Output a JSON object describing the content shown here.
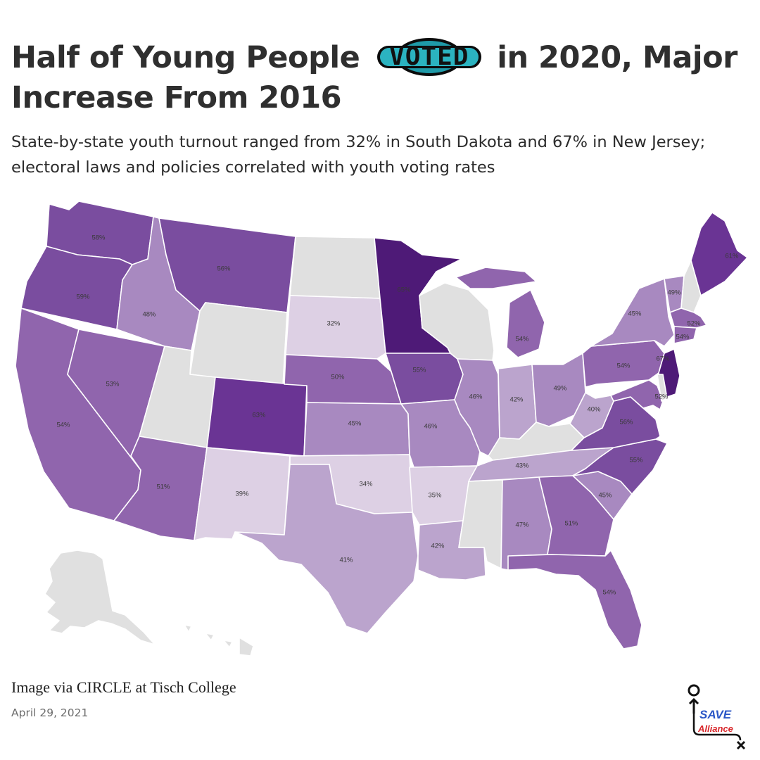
{
  "header": {
    "title_before": "Half of Young People",
    "badge": "VOTED",
    "title_after": "in 2020, Major Increase From 2016",
    "subtitle": "State-by-state youth turnout ranged from 32% in South Dakota and 67% in New Jersey; electoral laws and policies correlated with youth voting rates"
  },
  "map": {
    "no_data_color": "#e0e0e0",
    "colors": {
      "30s": "#ddd0e4",
      "40_44": "#bba4cd",
      "45_49": "#a889c0",
      "50_54": "#9065ad",
      "55_59": "#7a4d9f",
      "60_64": "#6a3494",
      "65_plus": "#4e1a77"
    },
    "states": [
      {
        "id": "WA",
        "label": "58%",
        "value": 58
      },
      {
        "id": "OR",
        "label": "59%",
        "value": 59
      },
      {
        "id": "CA",
        "label": "54%",
        "value": 54
      },
      {
        "id": "NV",
        "label": "53%",
        "value": 53
      },
      {
        "id": "ID",
        "label": "48%",
        "value": 48
      },
      {
        "id": "MT",
        "label": "56%",
        "value": 56
      },
      {
        "id": "WY",
        "label": "",
        "value": null
      },
      {
        "id": "UT",
        "label": "",
        "value": null
      },
      {
        "id": "AZ",
        "label": "51%",
        "value": 51
      },
      {
        "id": "CO",
        "label": "63%",
        "value": 63
      },
      {
        "id": "NM",
        "label": "39%",
        "value": 39
      },
      {
        "id": "ND",
        "label": "",
        "value": null
      },
      {
        "id": "SD",
        "label": "32%",
        "value": 32
      },
      {
        "id": "NE",
        "label": "50%",
        "value": 50
      },
      {
        "id": "KS",
        "label": "45%",
        "value": 45
      },
      {
        "id": "OK",
        "label": "34%",
        "value": 34
      },
      {
        "id": "TX",
        "label": "41%",
        "value": 41
      },
      {
        "id": "MN",
        "label": "65%",
        "value": 65
      },
      {
        "id": "IA",
        "label": "55%",
        "value": 55
      },
      {
        "id": "MO",
        "label": "46%",
        "value": 46
      },
      {
        "id": "AR",
        "label": "35%",
        "value": 35
      },
      {
        "id": "LA",
        "label": "42%",
        "value": 42
      },
      {
        "id": "WI",
        "label": "",
        "value": null
      },
      {
        "id": "IL",
        "label": "46%",
        "value": 46
      },
      {
        "id": "MI",
        "label": "54%",
        "value": 54
      },
      {
        "id": "IN",
        "label": "42%",
        "value": 42
      },
      {
        "id": "OH",
        "label": "49%",
        "value": 49
      },
      {
        "id": "KY",
        "label": "",
        "value": null
      },
      {
        "id": "TN",
        "label": "43%",
        "value": 43
      },
      {
        "id": "MS",
        "label": "",
        "value": null
      },
      {
        "id": "AL",
        "label": "47%",
        "value": 47
      },
      {
        "id": "GA",
        "label": "51%",
        "value": 51
      },
      {
        "id": "FL",
        "label": "54%",
        "value": 54
      },
      {
        "id": "SC",
        "label": "45%",
        "value": 45
      },
      {
        "id": "NC",
        "label": "55%",
        "value": 55
      },
      {
        "id": "VA",
        "label": "56%",
        "value": 56
      },
      {
        "id": "WV",
        "label": "40%",
        "value": 40
      },
      {
        "id": "PA",
        "label": "54%",
        "value": 54
      },
      {
        "id": "NY",
        "label": "45%",
        "value": 45
      },
      {
        "id": "VT",
        "label": "49%",
        "value": 49
      },
      {
        "id": "NH",
        "label": "",
        "value": null
      },
      {
        "id": "ME",
        "label": "61%",
        "value": 61
      },
      {
        "id": "MA",
        "label": "52%",
        "value": 52
      },
      {
        "id": "CT",
        "label": "54%",
        "value": 54
      },
      {
        "id": "NJ",
        "label": "67%",
        "value": 67
      },
      {
        "id": "MD",
        "label": "52%",
        "value": 52
      },
      {
        "id": "DE",
        "label": "",
        "value": null
      },
      {
        "id": "AK",
        "label": "",
        "value": null
      },
      {
        "id": "HI",
        "label": "",
        "value": null
      }
    ]
  },
  "footer": {
    "credit": "Image via CIRCLE at Tisch College",
    "date": "April 29, 2021"
  },
  "logo": {
    "line1": "SAVE",
    "line2": "Alliance",
    "colors": {
      "save": "#2a56c6",
      "alliance": "#d8262a"
    }
  }
}
